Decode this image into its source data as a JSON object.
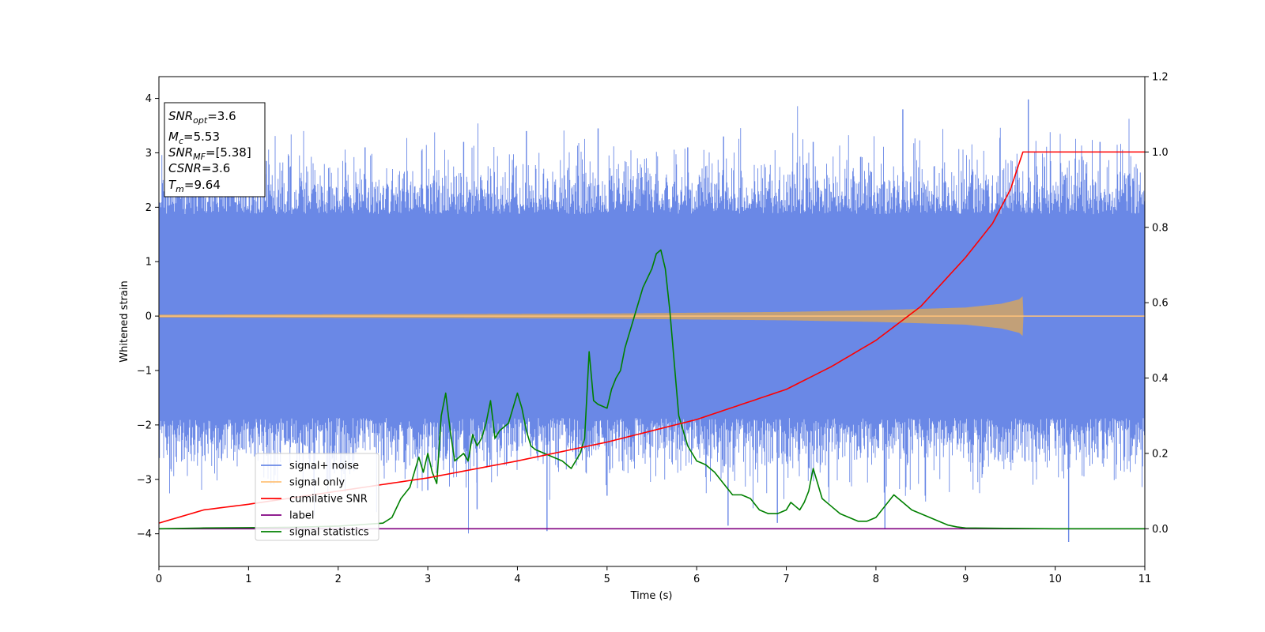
{
  "chart_data": {
    "type": "line",
    "xlabel": "Time (s)",
    "ylabel": "Whitened strain",
    "xlim": [
      0,
      11
    ],
    "ylim_left": [
      -4.6,
      4.4
    ],
    "ylim_right": [
      -0.1,
      1.2
    ],
    "x_ticks": [
      "0",
      "1",
      "2",
      "3",
      "4",
      "5",
      "6",
      "7",
      "8",
      "9",
      "10",
      "11"
    ],
    "y_ticks_left": [
      "−4",
      "−3",
      "−2",
      "−1",
      "0",
      "1",
      "2",
      "3",
      "4"
    ],
    "y_ticks_right": [
      "0.0",
      "0.2",
      "0.4",
      "0.6",
      "0.8",
      "1.0",
      "1.2"
    ],
    "legend": {
      "placement": "lower-left",
      "entries": [
        {
          "label": "signal+ noise",
          "color": "#6a88e6"
        },
        {
          "label": "signal only",
          "color": "#ffc27a"
        },
        {
          "label": "cumilative SNR",
          "color": "#ff0000"
        },
        {
          "label": "label",
          "color": "#800080"
        },
        {
          "label": "signal statistics",
          "color": "#008000"
        }
      ]
    },
    "stats_box": {
      "snr_opt": {
        "base": "SNR",
        "sub": "opt",
        "value": "=3.6"
      },
      "mc": {
        "base": "M",
        "sub": "c",
        "value": "=5.53"
      },
      "snr_mf": {
        "base": "SNR",
        "sub": "MF",
        "value": "=[5.38]"
      },
      "csnr": {
        "base": "CSNR",
        "value": "=3.6"
      },
      "tm": {
        "base": "T",
        "sub": "m",
        "value": "=9.64"
      }
    },
    "series": [
      {
        "name": "signal+ noise",
        "axis": "left",
        "color": "#6a88e6",
        "noise_envelope": {
          "typical_abs": 2.4,
          "max": 3.98,
          "min": -4.15
        },
        "spikes": [
          {
            "x": 0.5,
            "y": 2.9
          },
          {
            "x": 1.2,
            "y": 2.85
          },
          {
            "x": 2.3,
            "y": 3.1
          },
          {
            "x": 3.4,
            "y": 3.2
          },
          {
            "x": 4.1,
            "y": 3.4
          },
          {
            "x": 4.9,
            "y": 3.45
          },
          {
            "x": 5.9,
            "y": 3.1
          },
          {
            "x": 6.3,
            "y": 3.3
          },
          {
            "x": 7.3,
            "y": 3.2
          },
          {
            "x": 8.3,
            "y": 3.8
          },
          {
            "x": 9.7,
            "y": 3.98
          },
          {
            "x": 10.5,
            "y": 3.2
          },
          {
            "x": 3.0,
            "y": -3.2
          },
          {
            "x": 3.55,
            "y": -3.55
          },
          {
            "x": 4.33,
            "y": -3.95
          },
          {
            "x": 5.0,
            "y": -3.3
          },
          {
            "x": 6.35,
            "y": -3.85
          },
          {
            "x": 6.9,
            "y": -3.8
          },
          {
            "x": 8.1,
            "y": -3.9
          },
          {
            "x": 8.55,
            "y": -3.3
          },
          {
            "x": 10.15,
            "y": -4.15
          }
        ]
      },
      {
        "name": "signal only",
        "axis": "left",
        "color": "#ffc27a",
        "envelope": {
          "x": [
            0,
            3,
            5,
            7,
            8,
            9,
            9.4,
            9.6,
            9.64
          ],
          "amp": [
            0.02,
            0.03,
            0.04,
            0.07,
            0.1,
            0.15,
            0.22,
            0.3,
            0.36
          ]
        },
        "after_merger": 0
      },
      {
        "name": "cumilative SNR",
        "axis": "right",
        "color": "#ff0000",
        "x": [
          0,
          0.5,
          1,
          2,
          3,
          4,
          5,
          6,
          7,
          7.5,
          8,
          8.5,
          9,
          9.3,
          9.5,
          9.64,
          11
        ],
        "y": [
          0.015,
          0.05,
          0.065,
          0.1,
          0.135,
          0.18,
          0.23,
          0.29,
          0.37,
          0.43,
          0.5,
          0.59,
          0.72,
          0.81,
          0.9,
          1.0,
          1.0
        ]
      },
      {
        "name": "label",
        "axis": "right",
        "color": "#800080",
        "x": [
          0,
          11
        ],
        "y": [
          0,
          0
        ]
      },
      {
        "name": "signal statistics",
        "axis": "right",
        "color": "#008000",
        "x": [
          0,
          0.5,
          1,
          1.5,
          2,
          2.2,
          2.5,
          2.6,
          2.7,
          2.8,
          2.9,
          2.95,
          3.0,
          3.05,
          3.1,
          3.15,
          3.2,
          3.25,
          3.3,
          3.4,
          3.45,
          3.5,
          3.55,
          3.6,
          3.65,
          3.7,
          3.75,
          3.8,
          3.9,
          4.0,
          4.05,
          4.1,
          4.15,
          4.2,
          4.3,
          4.5,
          4.6,
          4.7,
          4.75,
          4.8,
          4.85,
          4.9,
          5.0,
          5.05,
          5.1,
          5.15,
          5.2,
          5.3,
          5.4,
          5.5,
          5.55,
          5.6,
          5.65,
          5.7,
          5.8,
          5.9,
          6.0,
          6.1,
          6.2,
          6.3,
          6.4,
          6.5,
          6.6,
          6.7,
          6.8,
          6.9,
          7.0,
          7.05,
          7.1,
          7.15,
          7.2,
          7.25,
          7.3,
          7.4,
          7.5,
          7.6,
          7.7,
          7.8,
          7.9,
          8.0,
          8.1,
          8.2,
          8.3,
          8.4,
          8.5,
          8.6,
          8.7,
          8.8,
          8.9,
          9.0,
          9.5,
          10,
          11
        ],
        "y": [
          0.0,
          0.002,
          0.003,
          0.004,
          0.007,
          0.01,
          0.015,
          0.03,
          0.08,
          0.11,
          0.19,
          0.15,
          0.2,
          0.15,
          0.12,
          0.3,
          0.36,
          0.26,
          0.18,
          0.2,
          0.18,
          0.25,
          0.22,
          0.24,
          0.28,
          0.34,
          0.24,
          0.26,
          0.28,
          0.36,
          0.32,
          0.26,
          0.22,
          0.21,
          0.2,
          0.18,
          0.16,
          0.2,
          0.24,
          0.47,
          0.34,
          0.33,
          0.32,
          0.37,
          0.4,
          0.42,
          0.48,
          0.56,
          0.64,
          0.69,
          0.73,
          0.74,
          0.69,
          0.58,
          0.3,
          0.22,
          0.18,
          0.17,
          0.15,
          0.12,
          0.09,
          0.09,
          0.08,
          0.05,
          0.04,
          0.04,
          0.05,
          0.07,
          0.06,
          0.05,
          0.07,
          0.1,
          0.16,
          0.08,
          0.06,
          0.04,
          0.03,
          0.02,
          0.02,
          0.03,
          0.06,
          0.09,
          0.07,
          0.05,
          0.04,
          0.03,
          0.02,
          0.01,
          0.005,
          0.002,
          0.001,
          0.0,
          0.0
        ]
      }
    ]
  }
}
